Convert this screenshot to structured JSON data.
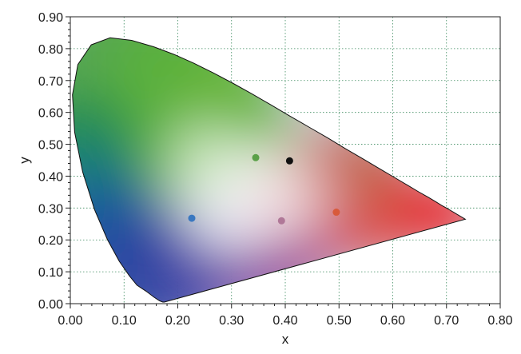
{
  "chart_data": {
    "type": "scatter",
    "title": "",
    "xlabel": "x",
    "ylabel": "y",
    "xlim": [
      0,
      0.8
    ],
    "ylim": [
      0,
      0.9
    ],
    "x_ticks": [
      "0.00",
      "0.10",
      "0.20",
      "0.30",
      "0.40",
      "0.50",
      "0.60",
      "0.70",
      "0.80"
    ],
    "y_ticks": [
      "0.00",
      "0.10",
      "0.20",
      "0.30",
      "0.40",
      "0.50",
      "0.60",
      "0.70",
      "0.80",
      "0.90"
    ],
    "grid": true,
    "background": "CIE 1931 chromaticity diagram (spectral locus gamut)",
    "spectral_locus": [
      [
        0.175,
        0.005
      ],
      [
        0.172,
        0.005
      ],
      [
        0.166,
        0.009
      ],
      [
        0.156,
        0.02
      ],
      [
        0.141,
        0.039
      ],
      [
        0.124,
        0.058
      ],
      [
        0.11,
        0.087
      ],
      [
        0.091,
        0.133
      ],
      [
        0.069,
        0.201
      ],
      [
        0.045,
        0.295
      ],
      [
        0.023,
        0.413
      ],
      [
        0.008,
        0.538
      ],
      [
        0.004,
        0.655
      ],
      [
        0.014,
        0.75
      ],
      [
        0.039,
        0.812
      ],
      [
        0.074,
        0.834
      ],
      [
        0.114,
        0.826
      ],
      [
        0.155,
        0.806
      ],
      [
        0.193,
        0.782
      ],
      [
        0.23,
        0.754
      ],
      [
        0.266,
        0.724
      ],
      [
        0.302,
        0.692
      ],
      [
        0.337,
        0.659
      ],
      [
        0.373,
        0.624
      ],
      [
        0.408,
        0.589
      ],
      [
        0.444,
        0.554
      ],
      [
        0.479,
        0.52
      ],
      [
        0.512,
        0.486
      ],
      [
        0.545,
        0.454
      ],
      [
        0.575,
        0.424
      ],
      [
        0.603,
        0.396
      ],
      [
        0.627,
        0.372
      ],
      [
        0.648,
        0.351
      ],
      [
        0.666,
        0.334
      ],
      [
        0.68,
        0.32
      ],
      [
        0.691,
        0.308
      ],
      [
        0.701,
        0.299
      ],
      [
        0.708,
        0.292
      ],
      [
        0.714,
        0.286
      ],
      [
        0.719,
        0.281
      ],
      [
        0.73,
        0.27
      ],
      [
        0.735,
        0.265
      ]
    ],
    "points": [
      {
        "x": 0.226,
        "y": 0.268,
        "color": "#3a78c0"
      },
      {
        "x": 0.345,
        "y": 0.458,
        "color": "#5aa048"
      },
      {
        "x": 0.408,
        "y": 0.448,
        "color": "#111111"
      },
      {
        "x": 0.393,
        "y": 0.26,
        "color": "#b07898"
      },
      {
        "x": 0.495,
        "y": 0.287,
        "color": "#d85a3a"
      }
    ]
  }
}
